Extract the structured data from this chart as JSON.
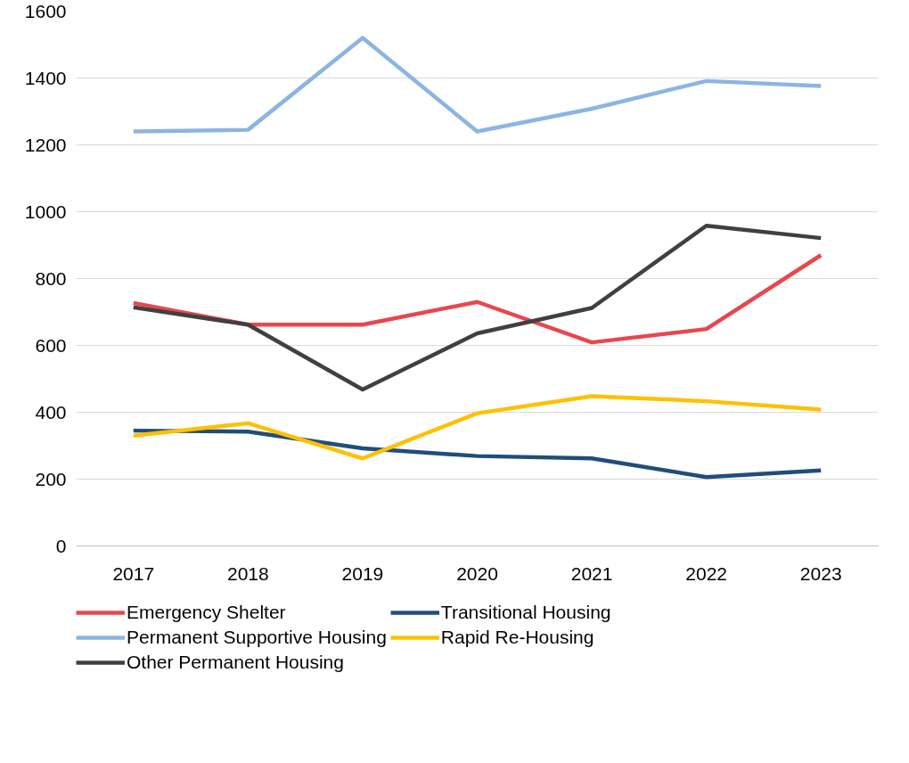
{
  "chart_data": {
    "type": "line",
    "categories": [
      "2017",
      "2018",
      "2019",
      "2020",
      "2021",
      "2022",
      "2023"
    ],
    "series": [
      {
        "name": "Emergency Shelter",
        "color": "#e8474e",
        "values": [
          727,
          662,
          662,
          730,
          609,
          649,
          870
        ]
      },
      {
        "name": "Transitional Housing",
        "color": "#1f4e79",
        "values": [
          345,
          342,
          292,
          269,
          262,
          206,
          226
        ]
      },
      {
        "name": "Permanent Supportive Housing",
        "color": "#8db4e2",
        "values": [
          1240,
          1245,
          1520,
          1240,
          1308,
          1391,
          1376
        ]
      },
      {
        "name": "Rapid Re-Housing",
        "color": "#ffc000",
        "values": [
          330,
          367,
          262,
          397,
          448,
          433,
          408
        ]
      },
      {
        "name": "Other Permanent Housing",
        "color": "#404040",
        "values": [
          714,
          662,
          468,
          636,
          712,
          958,
          921
        ]
      }
    ],
    "ylim": [
      0,
      1600
    ],
    "yticks": [
      0,
      200,
      400,
      600,
      800,
      1000,
      1200,
      1400,
      1600
    ],
    "grid": "y",
    "legend": "bottom",
    "marker": "none",
    "line_style": "solid"
  }
}
